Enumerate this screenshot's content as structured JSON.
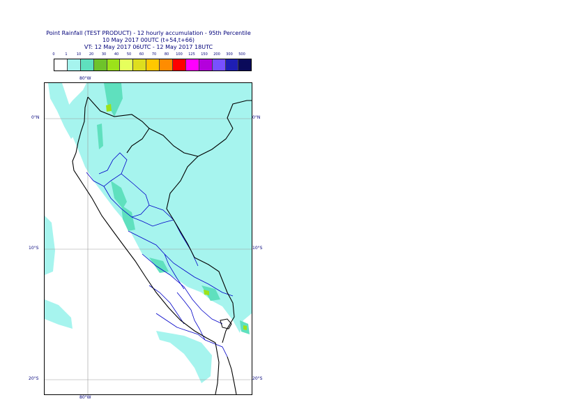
{
  "title": {
    "line1": "Point Rainfall (TEST PRODUCT) - 12 hourly accumulation - 95th Percentile",
    "line2": "10 May 2017 00UTC (t+54,t+66)",
    "line3": "VT: 12 May 2017 06UTC - 12 May 2017 18UTC"
  },
  "legend": {
    "thresholds": [
      "0",
      "1",
      "10",
      "20",
      "30",
      "40",
      "50",
      "60",
      "70",
      "80",
      "100",
      "125",
      "150",
      "200",
      "300",
      "500"
    ],
    "colors": [
      "#ffffff",
      "#a6f4ee",
      "#5fe0be",
      "#6ec32a",
      "#9ce21a",
      "#e6ff5c",
      "#dede1e",
      "#ffc800",
      "#ff8c00",
      "#ff0000",
      "#ff00ff",
      "#b400dc",
      "#7850ff",
      "#1e1eb4",
      "#0a0a5a"
    ]
  },
  "map": {
    "lon_labels": {
      "top": "80°W",
      "bottom": "80°W"
    },
    "lat_labels": [
      "0°N",
      "10°S",
      "20°S"
    ],
    "colors": {
      "background": "#ffffff",
      "rain_low": "#a6f4ee",
      "rain_mid": "#5fe0be",
      "rain_high": "#9ce21a",
      "coast": "#000000",
      "regions": "#0000c8",
      "grid": "#9a9a9a"
    }
  }
}
